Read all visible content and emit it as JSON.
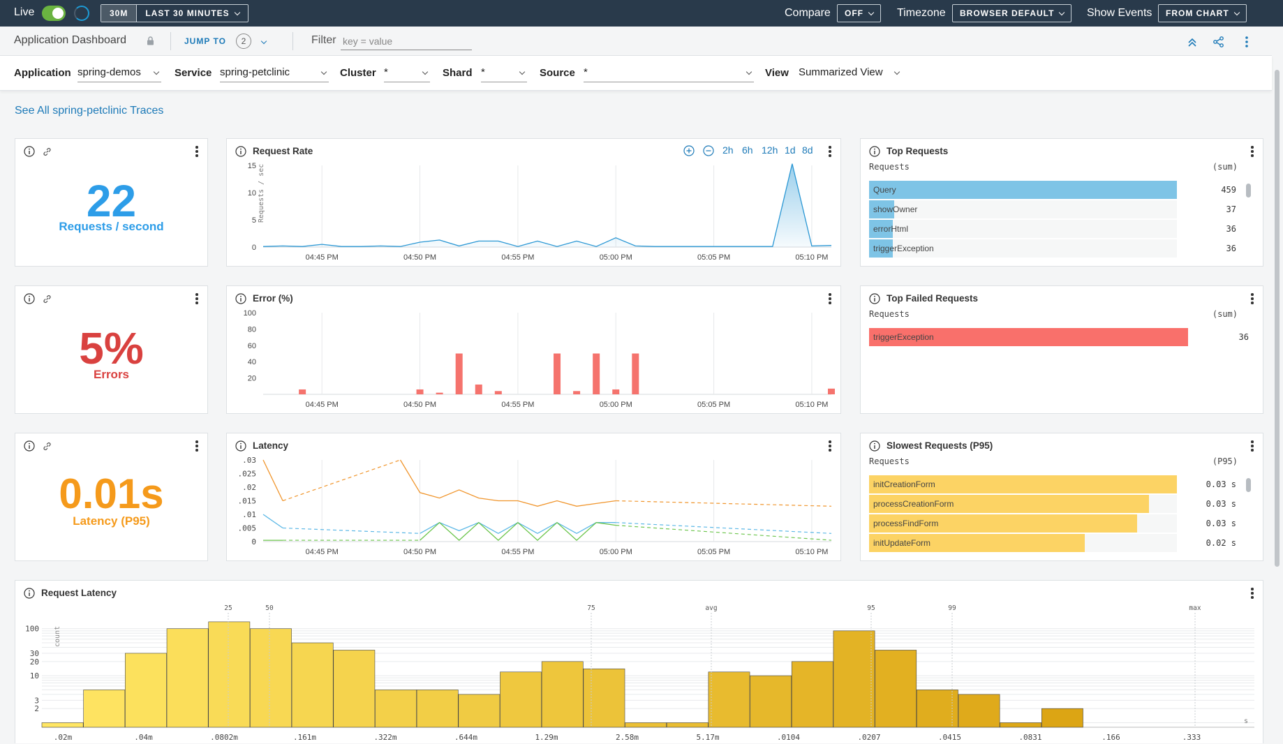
{
  "topbar": {
    "live_label": "Live",
    "range_active": "30M",
    "range_label": "LAST 30 MINUTES",
    "compare_label": "Compare",
    "compare_value": "OFF",
    "timezone_label": "Timezone",
    "timezone_value": "BROWSER DEFAULT",
    "show_events_label": "Show Events",
    "show_events_value": "FROM CHART",
    "live_on": true
  },
  "header": {
    "title": "Application Dashboard",
    "jump_to": "JUMP TO",
    "jump_count": "2",
    "filter_label": "Filter",
    "filter_placeholder": "key = value"
  },
  "variables": [
    {
      "label": "Application",
      "value": "spring-demos"
    },
    {
      "label": "Service",
      "value": "spring-petclinic"
    },
    {
      "label": "Cluster",
      "value": "*"
    },
    {
      "label": "Shard",
      "value": "*"
    },
    {
      "label": "Source",
      "value": "*"
    },
    {
      "label": "View",
      "value": "Summarized View"
    }
  ],
  "traces_link": "See All spring-petclinic Traces",
  "stats": {
    "requests": {
      "value": "22",
      "unit": "Requests / second",
      "color": "#2d9de8"
    },
    "errors": {
      "value": "5%",
      "unit": "Errors",
      "color": "#d9413f"
    },
    "latency": {
      "value": "0.01s",
      "unit": "Latency (P95)",
      "color": "#f59a1b"
    }
  },
  "x_ticks": [
    "04:45 PM",
    "04:50 PM",
    "04:55 PM",
    "05:00 PM",
    "05:05 PM",
    "05:10 PM"
  ],
  "request_rate": {
    "title": "Request Rate",
    "zoom": [
      "2h",
      "6h",
      "12h",
      "1d",
      "8d"
    ],
    "ylabel": "Requests / sec",
    "yticks": [
      "15",
      "10",
      "5",
      "0"
    ]
  },
  "error_pct": {
    "title": "Error (%)",
    "yticks": [
      "100",
      "80",
      "60",
      "40",
      "20"
    ]
  },
  "latency": {
    "title": "Latency",
    "yticks": [
      ".03",
      ".025",
      ".02",
      ".015",
      ".01",
      ".005",
      "0"
    ]
  },
  "top_requests": {
    "title": "Top Requests",
    "col_left": "Requests",
    "col_right": "(sum)",
    "color": "#7ec4e6",
    "rows": [
      {
        "name": "Query",
        "value": "459",
        "frac": 1.0
      },
      {
        "name": "showOwner",
        "value": "37",
        "frac": 0.081
      },
      {
        "name": "errorHtml",
        "value": "36",
        "frac": 0.078
      },
      {
        "name": "triggerException",
        "value": "36",
        "frac": 0.078
      }
    ]
  },
  "top_failed": {
    "title": "Top Failed Requests",
    "col_left": "Requests",
    "col_right": "(sum)",
    "color": "#f9706b",
    "rows": [
      {
        "name": "triggerException",
        "value": "36",
        "frac": 1.0
      }
    ]
  },
  "slowest": {
    "title": "Slowest Requests (P95)",
    "col_left": "Requests",
    "col_right": "(P95)",
    "color": "#fcd364",
    "rows": [
      {
        "name": "initCreationForm",
        "value": "0.03 s",
        "frac": 1.0
      },
      {
        "name": "processCreationForm",
        "value": "0.03 s",
        "frac": 0.91
      },
      {
        "name": "processFindForm",
        "value": "0.03 s",
        "frac": 0.87
      },
      {
        "name": "initUpdateForm",
        "value": "0.02 s",
        "frac": 0.7
      }
    ]
  },
  "histogram": {
    "title": "Request Latency",
    "ylabel": "count",
    "yticks": [
      "100",
      "30",
      "20",
      "10",
      "3",
      "2"
    ],
    "xticks": [
      ".02m",
      ".04m",
      ".0802m",
      ".161m",
      ".322m",
      ".644m",
      "1.29m",
      "2.58m",
      "5.17m",
      ".0104",
      ".0207",
      ".0415",
      ".0831",
      ".166",
      ".333"
    ],
    "x_unit": "s",
    "markers": [
      "25",
      "50",
      "75",
      "avg",
      "95",
      "99",
      "max"
    ]
  },
  "chart_data": [
    {
      "type": "line",
      "title": "Request Rate",
      "ylabel": "Requests / sec",
      "ylim": [
        0,
        15
      ],
      "x": [
        "04:42",
        "04:43",
        "04:44",
        "04:45",
        "04:46",
        "04:47",
        "04:48",
        "04:49",
        "04:50",
        "04:51",
        "04:52",
        "04:53",
        "04:54",
        "04:55",
        "04:56",
        "04:57",
        "04:58",
        "04:59",
        "05:00",
        "05:01",
        "05:02",
        "05:03",
        "05:04",
        "05:05",
        "05:06",
        "05:07",
        "05:08",
        "05:09",
        "05:10",
        "05:11"
      ],
      "series": [
        {
          "values": [
            0.1,
            0.2,
            0.1,
            0.5,
            0.1,
            0.1,
            0.2,
            0.1,
            0.9,
            1.3,
            0.2,
            1.1,
            1.1,
            0.1,
            1.1,
            0.1,
            1.1,
            0.1,
            1.7,
            0.2,
            0.1,
            0.1,
            0.1,
            0.1,
            0.1,
            0.1,
            0.1,
            15.3,
            0.2,
            0.3
          ]
        }
      ]
    },
    {
      "type": "bar",
      "title": "Error (%)",
      "ylim": [
        0,
        100
      ],
      "x": [
        "04:42",
        "04:43",
        "04:44",
        "04:45",
        "04:46",
        "04:47",
        "04:48",
        "04:49",
        "04:50",
        "04:51",
        "04:52",
        "04:53",
        "04:54",
        "04:55",
        "04:56",
        "04:57",
        "04:58",
        "04:59",
        "05:00",
        "05:01",
        "05:02",
        "05:03",
        "05:04",
        "05:05",
        "05:06",
        "05:07",
        "05:08",
        "05:09",
        "05:10",
        "05:11"
      ],
      "values": [
        0,
        0,
        6,
        0,
        0,
        0,
        0,
        0,
        6,
        2,
        50,
        12,
        4,
        0,
        0,
        50,
        4,
        50,
        6,
        50,
        0,
        0,
        0,
        0,
        0,
        0,
        0,
        0,
        0,
        7
      ]
    },
    {
      "type": "line",
      "title": "Latency",
      "ylim": [
        0,
        0.03
      ],
      "x": [
        "04:42",
        "04:43",
        "04:44",
        "04:45",
        "04:46",
        "04:47",
        "04:48",
        "04:49",
        "04:50",
        "04:51",
        "04:52",
        "04:53",
        "04:54",
        "04:55",
        "04:56",
        "04:57",
        "04:58",
        "04:59",
        "05:00",
        "05:01",
        "05:02",
        "05:03",
        "05:04",
        "05:05",
        "05:06",
        "05:07",
        "05:08",
        "05:09",
        "05:10",
        "05:11"
      ],
      "series": [
        {
          "color": "#f0952c",
          "values": [
            0.03,
            0.015,
            null,
            null,
            null,
            null,
            null,
            0.03,
            0.018,
            0.016,
            0.019,
            0.016,
            0.015,
            0.015,
            0.013,
            0.015,
            0.013,
            0.014,
            0.015,
            null,
            null,
            null,
            null,
            null,
            null,
            null,
            null,
            null,
            null,
            0.013
          ]
        },
        {
          "color": "#5cb8e6",
          "values": [
            0.01,
            0.005,
            null,
            null,
            null,
            null,
            null,
            null,
            0.003,
            0.007,
            0.004,
            0.007,
            0.003,
            0.007,
            0.003,
            0.007,
            0.003,
            0.007,
            0.007,
            null,
            null,
            null,
            null,
            null,
            null,
            null,
            null,
            null,
            null,
            0.003
          ]
        },
        {
          "color": "#6ac44a",
          "values": [
            0.0005,
            0.0005,
            null,
            null,
            null,
            null,
            null,
            null,
            0.0005,
            0.007,
            0.0005,
            0.007,
            0.0005,
            0.007,
            0.0005,
            0.007,
            0.0005,
            0.007,
            0.006,
            null,
            null,
            null,
            null,
            null,
            null,
            null,
            null,
            null,
            null,
            0.0005
          ]
        }
      ]
    },
    {
      "type": "bar",
      "title": "Request Latency",
      "ylabel": "count",
      "scale": "log",
      "values": [
        1,
        5,
        30,
        100,
        140,
        100,
        50,
        35,
        5,
        5,
        4,
        12,
        20,
        14,
        1,
        1,
        12,
        10,
        20,
        90,
        35,
        5,
        4,
        1,
        2
      ]
    }
  ]
}
